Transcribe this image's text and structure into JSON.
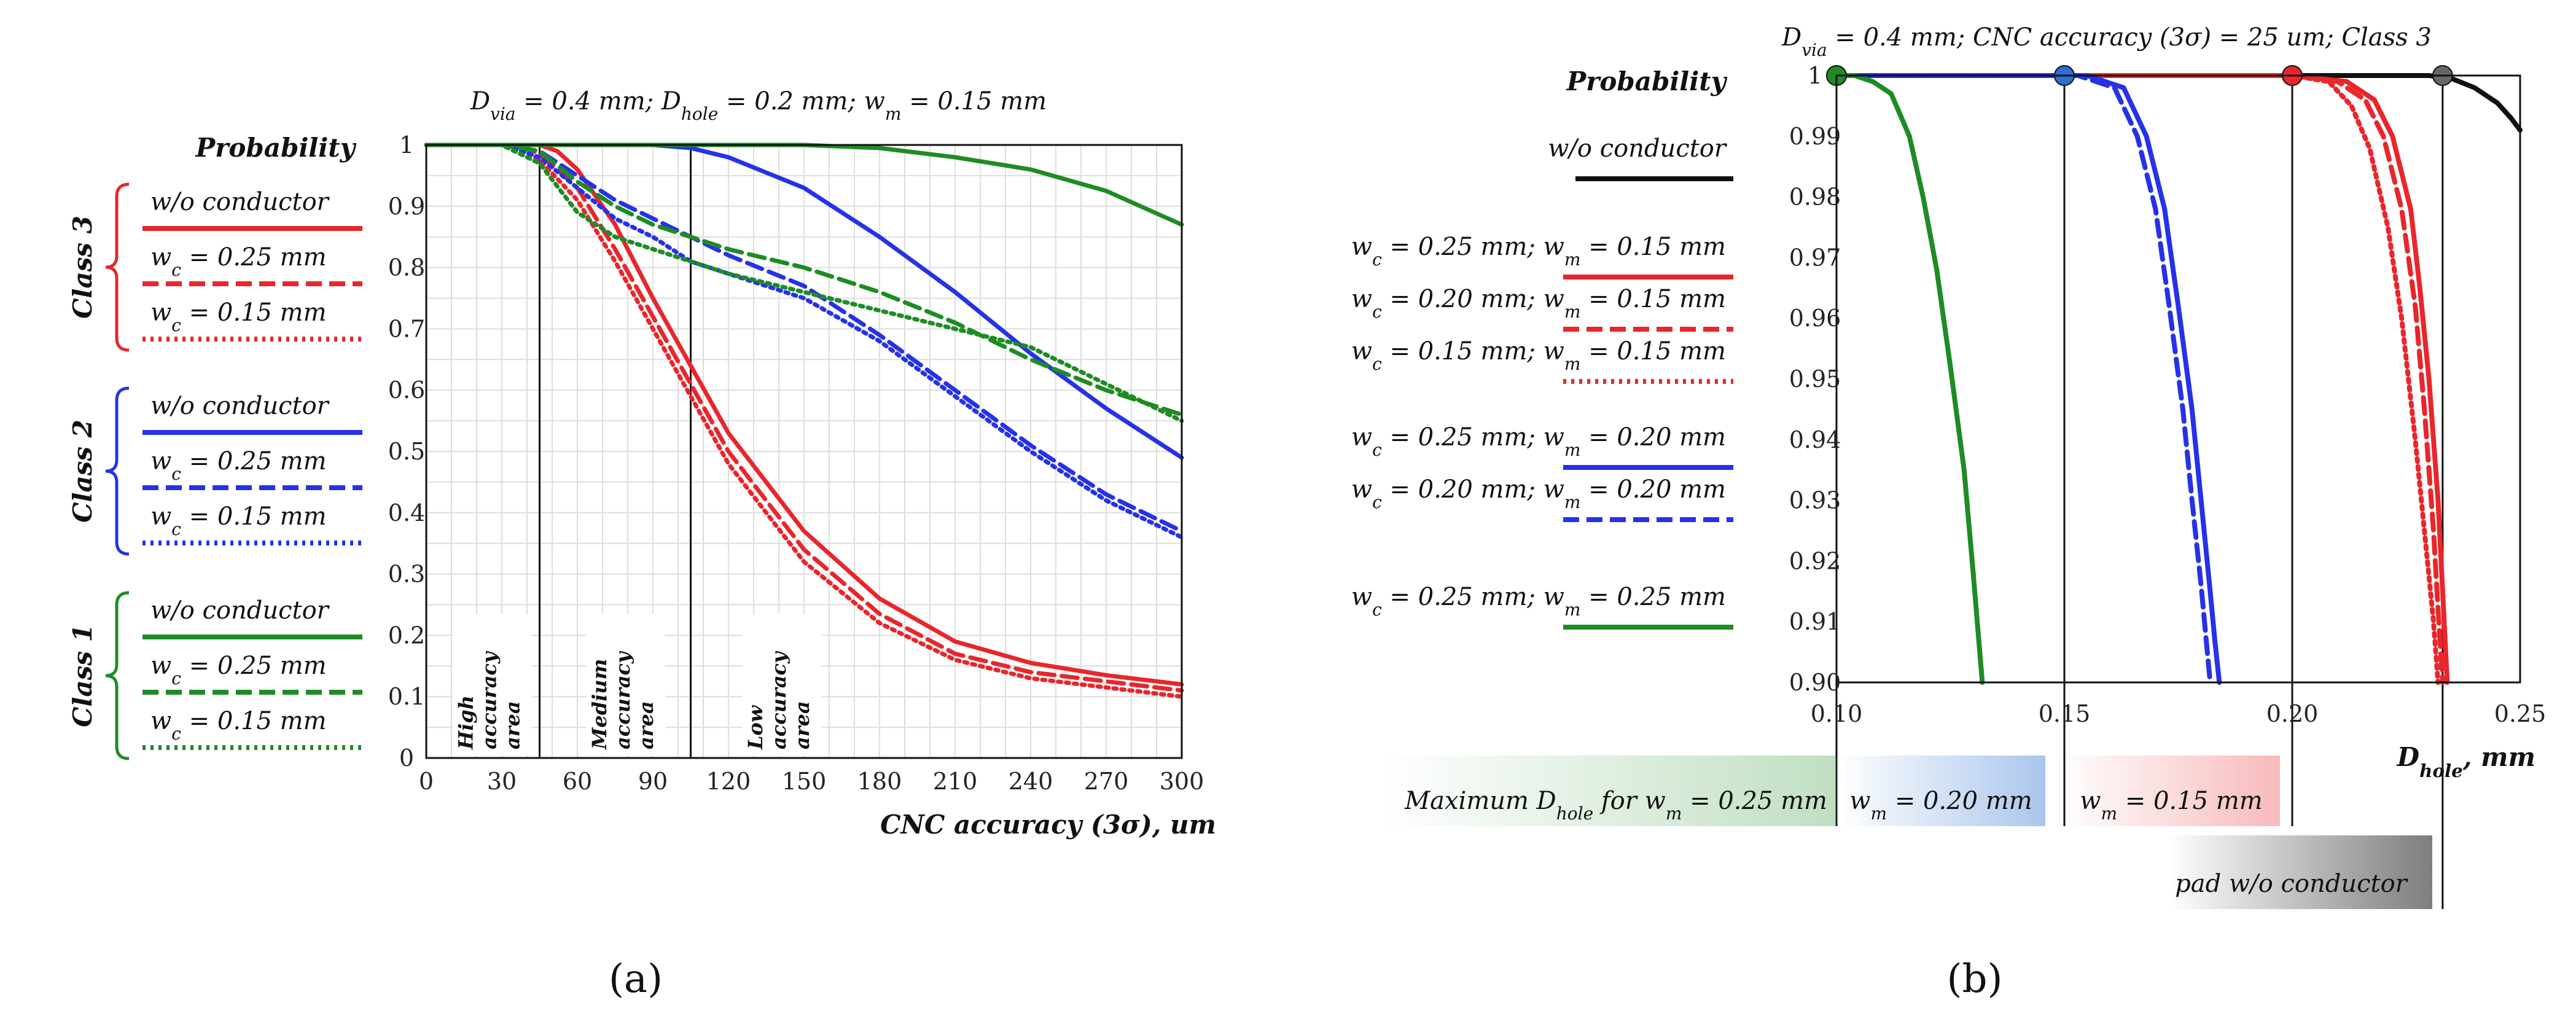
{
  "chart_data": [
    {
      "id": "a",
      "type": "line",
      "title": "D_via = 0.4 mm; D_hole = 0.2 mm; w_m = 0.15 mm",
      "ylabel": "Probability",
      "xlabel": "CNC accuracy (3σ), um",
      "xlim": [
        0,
        300
      ],
      "ylim": [
        0,
        1
      ],
      "xticks": [
        0,
        30,
        60,
        90,
        120,
        150,
        180,
        210,
        240,
        270,
        300
      ],
      "yticks": [
        0,
        0.1,
        0.2,
        0.3,
        0.4,
        0.5,
        0.6,
        0.7,
        0.8,
        0.9,
        1
      ],
      "ytick_labels": [
        "0",
        "0.1",
        "0.2",
        "0.3",
        "0.4",
        "0.5",
        "0.6",
        "0.7",
        "0.8",
        "0.9",
        "1"
      ],
      "grid": true,
      "vlines": [
        45,
        105
      ],
      "regions": [
        {
          "label": "High accuracy area",
          "x": 15
        },
        {
          "label": "Medium accuracy area",
          "x": 68
        },
        {
          "label": "Low accuracy area",
          "x": 130
        }
      ],
      "legend_groups": [
        {
          "name": "Class 3",
          "color": "#e8262b",
          "entries": [
            "w/o conductor",
            "w_c = 0.25 mm",
            "w_c = 0.15 mm"
          ]
        },
        {
          "name": "Class 2",
          "color": "#2532e8",
          "entries": [
            "w/o conductor",
            "w_c = 0.25 mm",
            "w_c = 0.15 mm"
          ]
        },
        {
          "name": "Class 1",
          "color": "#1e8c24",
          "entries": [
            "w/o conductor",
            "w_c = 0.25 mm",
            "w_c = 0.15 mm"
          ]
        }
      ],
      "series": [
        {
          "name": "Class 3 w/o conductor",
          "color": "#e8262b",
          "style": "solid",
          "x": [
            0,
            30,
            45,
            52,
            60,
            75,
            90,
            105,
            120,
            150,
            180,
            210,
            240,
            270,
            300
          ],
          "y": [
            1,
            1,
            1,
            0.99,
            0.96,
            0.87,
            0.75,
            0.64,
            0.53,
            0.37,
            0.26,
            0.19,
            0.155,
            0.135,
            0.12
          ]
        },
        {
          "name": "Class 3 w_c = 0.25 mm",
          "color": "#e8262b",
          "style": "dashed",
          "x": [
            0,
            30,
            40,
            45,
            52,
            60,
            75,
            90,
            105,
            120,
            150,
            180,
            210,
            240,
            270,
            300
          ],
          "y": [
            1,
            1,
            0.995,
            0.985,
            0.96,
            0.93,
            0.83,
            0.72,
            0.61,
            0.5,
            0.34,
            0.235,
            0.17,
            0.14,
            0.125,
            0.11
          ]
        },
        {
          "name": "Class 3 w_c = 0.15 mm",
          "color": "#e8262b",
          "style": "dotted",
          "x": [
            0,
            30,
            40,
            45,
            52,
            60,
            75,
            90,
            105,
            120,
            150,
            180,
            210,
            240,
            270,
            300
          ],
          "y": [
            1,
            1,
            0.99,
            0.975,
            0.945,
            0.91,
            0.81,
            0.7,
            0.59,
            0.48,
            0.32,
            0.22,
            0.16,
            0.13,
            0.115,
            0.1
          ]
        },
        {
          "name": "Class 2 w/o conductor",
          "color": "#2532e8",
          "style": "solid",
          "x": [
            0,
            60,
            90,
            105,
            120,
            150,
            180,
            210,
            240,
            270,
            300
          ],
          "y": [
            1,
            1,
            1,
            0.995,
            0.98,
            0.93,
            0.85,
            0.76,
            0.66,
            0.57,
            0.49
          ]
        },
        {
          "name": "Class 2 w_c = 0.25 mm",
          "color": "#2532e8",
          "style": "dashed",
          "x": [
            0,
            30,
            45,
            60,
            75,
            90,
            105,
            120,
            150,
            180,
            210,
            240,
            270,
            300
          ],
          "y": [
            1,
            1,
            0.99,
            0.95,
            0.91,
            0.88,
            0.85,
            0.82,
            0.77,
            0.69,
            0.6,
            0.51,
            0.43,
            0.37
          ]
        },
        {
          "name": "Class 2 w_c = 0.15 mm",
          "color": "#2532e8",
          "style": "dotted",
          "x": [
            0,
            30,
            45,
            60,
            75,
            90,
            105,
            120,
            150,
            180,
            210,
            240,
            270,
            300
          ],
          "y": [
            1,
            1,
            0.98,
            0.93,
            0.88,
            0.85,
            0.81,
            0.79,
            0.75,
            0.68,
            0.59,
            0.5,
            0.42,
            0.36
          ]
        },
        {
          "name": "Class 1 w/o conductor",
          "color": "#1e8c24",
          "style": "solid",
          "x": [
            0,
            150,
            180,
            210,
            240,
            270,
            300
          ],
          "y": [
            1,
            1,
            0.995,
            0.98,
            0.96,
            0.925,
            0.87
          ]
        },
        {
          "name": "Class 1 w_c = 0.25 mm",
          "color": "#1e8c24",
          "style": "dashed",
          "x": [
            0,
            30,
            45,
            60,
            75,
            90,
            105,
            120,
            150,
            180,
            210,
            240,
            270,
            300
          ],
          "y": [
            1,
            1,
            0.99,
            0.94,
            0.9,
            0.87,
            0.85,
            0.83,
            0.8,
            0.76,
            0.71,
            0.65,
            0.6,
            0.56
          ]
        },
        {
          "name": "Class 1 w_c = 0.15 mm",
          "color": "#1e8c24",
          "style": "dotted",
          "x": [
            0,
            30,
            45,
            60,
            75,
            90,
            105,
            120,
            150,
            180,
            210,
            240,
            270,
            300
          ],
          "y": [
            1,
            1,
            0.97,
            0.89,
            0.85,
            0.83,
            0.81,
            0.79,
            0.76,
            0.73,
            0.7,
            0.67,
            0.61,
            0.55
          ]
        }
      ]
    },
    {
      "id": "b",
      "type": "line",
      "title": "D_via = 0.4 mm; CNC accuracy (3σ) = 25 um; Class 3",
      "ylabel": "Probability",
      "xlabel": "D_hole, mm",
      "xlim": [
        0.1,
        0.25
      ],
      "ylim": [
        0.9,
        1
      ],
      "xticks": [
        0.1,
        0.15,
        0.2,
        0.25
      ],
      "xtick_labels": [
        "0.10",
        "0.15",
        "0.20",
        "0.25"
      ],
      "yticks": [
        0.9,
        0.91,
        0.92,
        0.93,
        0.94,
        0.95,
        0.96,
        0.97,
        0.98,
        0.99,
        1
      ],
      "ytick_labels": [
        "0.90",
        "0.91",
        "0.92",
        "0.93",
        "0.94",
        "0.95",
        "0.96",
        "0.97",
        "0.98",
        "0.99",
        "1"
      ],
      "grid": false,
      "vlines": [
        0.1,
        0.15,
        0.2,
        0.233
      ],
      "markers": [
        {
          "x": 0.1,
          "y": 1,
          "color": "#1e8c24"
        },
        {
          "x": 0.15,
          "y": 1,
          "color": "#2a6fd1"
        },
        {
          "x": 0.2,
          "y": 1,
          "color": "#e8262b"
        },
        {
          "x": 0.233,
          "y": 1,
          "color": "#666666"
        }
      ],
      "legend": [
        {
          "label": "w/o conductor",
          "color": "#111111",
          "style": "solid"
        },
        {
          "label": "w_c = 0.25 mm; w_m = 0.15 mm",
          "color": "#e8262b",
          "style": "solid"
        },
        {
          "label": "w_c = 0.20 mm; w_m = 0.15 mm",
          "color": "#e8262b",
          "style": "dashed"
        },
        {
          "label": "w_c = 0.15 mm; w_m = 0.15 mm",
          "color": "#e8262b",
          "style": "dotted"
        },
        {
          "label": "w_c = 0.25 mm; w_m = 0.20 mm",
          "color": "#2532e8",
          "style": "solid"
        },
        {
          "label": "w_c = 0.20 mm; w_m = 0.20 mm",
          "color": "#2532e8",
          "style": "dashed"
        },
        {
          "label": "w_c = 0.25 mm; w_m = 0.25 mm",
          "color": "#1e8c24",
          "style": "solid"
        }
      ],
      "bottom_bands": [
        {
          "label": "Maximum D_hole for w_m = 0.25 mm",
          "color": "#1e8c24"
        },
        {
          "label": "w_m = 0.20 mm",
          "color": "#2a6fd1"
        },
        {
          "label": "w_m = 0.15 mm",
          "color": "#e8262b"
        },
        {
          "label": "pad w/o conductor",
          "color": "#777777"
        }
      ],
      "series": [
        {
          "name": "w/o conductor",
          "color": "#111111",
          "style": "solid",
          "x": [
            0.1,
            0.23,
            0.235,
            0.24,
            0.245,
            0.248,
            0.25
          ],
          "y": [
            1,
            1,
            0.9995,
            0.998,
            0.9955,
            0.993,
            0.991
          ]
        },
        {
          "name": "w_c = 0.25 mm; w_m = 0.15 mm",
          "color": "#e8262b",
          "style": "solid",
          "x": [
            0.1,
            0.2,
            0.212,
            0.218,
            0.222,
            0.226,
            0.228,
            0.23,
            0.232,
            0.233,
            0.234
          ],
          "y": [
            1,
            1,
            0.999,
            0.996,
            0.99,
            0.978,
            0.965,
            0.95,
            0.93,
            0.915,
            0.9
          ]
        },
        {
          "name": "w_c = 0.20 mm; w_m = 0.15 mm",
          "color": "#e8262b",
          "style": "dashed",
          "x": [
            0.1,
            0.2,
            0.21,
            0.216,
            0.22,
            0.224,
            0.227,
            0.229,
            0.231,
            0.232,
            0.233
          ],
          "y": [
            1,
            1,
            0.999,
            0.996,
            0.99,
            0.978,
            0.962,
            0.945,
            0.925,
            0.912,
            0.9
          ]
        },
        {
          "name": "w_c = 0.15 mm; w_m = 0.15 mm",
          "color": "#e8262b",
          "style": "dotted",
          "x": [
            0.1,
            0.2,
            0.208,
            0.213,
            0.217,
            0.221,
            0.224,
            0.227,
            0.229,
            0.231,
            0.232
          ],
          "y": [
            1,
            1,
            0.999,
            0.995,
            0.988,
            0.975,
            0.96,
            0.94,
            0.925,
            0.91,
            0.9
          ]
        },
        {
          "name": "w_c = 0.25 mm; w_m = 0.20 mm",
          "color": "#2532e8",
          "style": "solid",
          "x": [
            0.1,
            0.155,
            0.163,
            0.168,
            0.172,
            0.175,
            0.178,
            0.18,
            0.182,
            0.183,
            0.184
          ],
          "y": [
            1,
            1,
            0.998,
            0.99,
            0.978,
            0.962,
            0.945,
            0.93,
            0.915,
            0.907,
            0.9
          ]
        },
        {
          "name": "w_c = 0.20 mm; w_m = 0.20 mm",
          "color": "#2532e8",
          "style": "dashed",
          "x": [
            0.1,
            0.153,
            0.161,
            0.166,
            0.17,
            0.173,
            0.176,
            0.178,
            0.18,
            0.181,
            0.182
          ],
          "y": [
            1,
            1,
            0.998,
            0.99,
            0.978,
            0.962,
            0.945,
            0.93,
            0.916,
            0.908,
            0.9
          ]
        },
        {
          "name": "w_c = 0.25 mm; w_m = 0.25 mm",
          "color": "#1e8c24",
          "style": "solid",
          "x": [
            0.1,
            0.104,
            0.108,
            0.112,
            0.116,
            0.119,
            0.122,
            0.125,
            0.128,
            0.13,
            0.132
          ],
          "y": [
            1,
            1,
            0.999,
            0.997,
            0.99,
            0.98,
            0.968,
            0.952,
            0.935,
            0.918,
            0.9
          ]
        }
      ]
    }
  ],
  "panel_labels": [
    "(a)",
    "(b)"
  ]
}
